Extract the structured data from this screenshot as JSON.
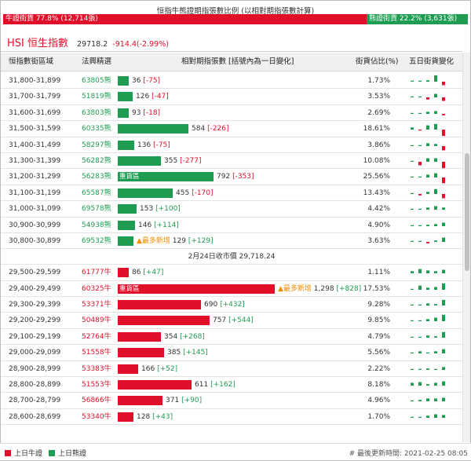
{
  "title": "恒指牛熊證期指張數比例 (以相對期指張數計算)",
  "ratio": {
    "bull_text": "牛證街貨 77.8% (12,714張)",
    "bear_text": "熊證街貨 22.2% (3,631張)",
    "bull_fraction": 0.778
  },
  "hsi": {
    "name": "HSI 恒生指數",
    "value": "29718.2",
    "change": "-914.4(-2.99%)"
  },
  "headers": {
    "range": "恒指數街區域",
    "code": "法興精選",
    "contracts": "相對期指張數 [括號內為一日變化]",
    "pct": "街貨佔比(%)",
    "spark": "五日街貨變化"
  },
  "colors": {
    "bull": "#e0102b",
    "bear": "#1e9d52",
    "flag": "#f08d00"
  },
  "bear_rows": [
    {
      "range": "31,800-31,899",
      "code": "63805熊",
      "count": "36",
      "change": "[-75]",
      "tag": "",
      "flag": "",
      "pct": "1.73%",
      "spark": [
        0,
        0,
        0.2,
        0.9,
        -0.5
      ]
    },
    {
      "range": "31,700-31,799",
      "code": "51819熊",
      "count": "126",
      "change": "[-47]",
      "tag": "",
      "flag": "",
      "pct": "3.53%",
      "spark": [
        0,
        0.1,
        -0.3,
        0.5,
        -0.5
      ]
    },
    {
      "range": "31,600-31,699",
      "code": "63803熊",
      "count": "93",
      "change": "[-18]",
      "tag": "",
      "flag": "",
      "pct": "2.69%",
      "spark": [
        0,
        0.1,
        0.3,
        0.4,
        -0.2
      ]
    },
    {
      "range": "31,500-31,599",
      "code": "60335熊",
      "count": "584",
      "change": "[-226]",
      "tag": "",
      "flag": "",
      "pct": "18.61%",
      "spark": [
        0.3,
        -0.1,
        0.6,
        0.8,
        -0.9
      ]
    },
    {
      "range": "31,400-31,499",
      "code": "58297熊",
      "count": "136",
      "change": "[-75]",
      "tag": "",
      "flag": "",
      "pct": "3.86%",
      "spark": [
        0,
        0.1,
        0.4,
        0.3,
        -0.6
      ]
    },
    {
      "range": "31,300-31,399",
      "code": "56282熊",
      "count": "355",
      "change": "[-277]",
      "tag": "",
      "flag": "",
      "pct": "10.08%",
      "spark": [
        0,
        -0.5,
        0.5,
        0.5,
        -0.9
      ]
    },
    {
      "range": "31,200-31,299",
      "code": "56283熊",
      "count": "792",
      "change": "[-353]",
      "tag": "重貨區",
      "flag": "",
      "pct": "25.56%",
      "spark": [
        0,
        0.1,
        0.4,
        0.6,
        -0.8
      ]
    },
    {
      "range": "31,100-31,199",
      "code": "65587熊",
      "count": "455",
      "change": "[-170]",
      "tag": "",
      "flag": "",
      "pct": "13.43%",
      "spark": [
        0,
        -0.2,
        0.3,
        0.7,
        -0.6
      ]
    },
    {
      "range": "31,000-31,099",
      "code": "69578熊",
      "count": "153",
      "change": "[+100]",
      "tag": "",
      "flag": "",
      "pct": "4.42%",
      "spark": [
        0,
        0.1,
        0.3,
        0.5,
        0.3
      ]
    },
    {
      "range": "30,900-30,999",
      "code": "54938熊",
      "count": "146",
      "change": "[+114]",
      "tag": "",
      "flag": "",
      "pct": "4.90%",
      "spark": [
        0,
        0.1,
        0.2,
        0.3,
        0.5
      ]
    },
    {
      "range": "30,800-30,899",
      "code": "69532熊",
      "count": "129",
      "change": "[+129]",
      "tag": "",
      "flag": "▲最多新增",
      "pct": "3.63%",
      "spark": [
        0,
        0,
        -0.2,
        0.2,
        0.6
      ]
    }
  ],
  "divider": "2月24日收市價 29,718.24",
  "bull_rows": [
    {
      "range": "29,500-29,599",
      "code": "61777牛",
      "count": "86",
      "change": "[+47]",
      "tag": "",
      "flag": "",
      "pct": "1.11%",
      "spark": [
        0.3,
        0.6,
        0.4,
        0.3,
        0.5
      ]
    },
    {
      "range": "29,400-29,499",
      "code": "60325牛",
      "count": "1,298",
      "change": "[+828]",
      "tag": "重貨區",
      "flag": "▲最多新增",
      "pct": "17.53%",
      "spark": [
        0,
        0.6,
        0.3,
        0.4,
        0.9
      ]
    },
    {
      "range": "29,300-29,399",
      "code": "53371牛",
      "count": "690",
      "change": "[+432]",
      "tag": "",
      "flag": "",
      "pct": "9.28%",
      "spark": [
        0,
        0.1,
        0.3,
        0.2,
        0.8
      ]
    },
    {
      "range": "29,200-29,299",
      "code": "50489牛",
      "count": "757",
      "change": "[+544]",
      "tag": "",
      "flag": "",
      "pct": "9.85%",
      "spark": [
        0.1,
        0.1,
        0.3,
        0.5,
        0.9
      ]
    },
    {
      "range": "29,100-29,199",
      "code": "52764牛",
      "count": "354",
      "change": "[+268]",
      "tag": "",
      "flag": "",
      "pct": "4.79%",
      "spark": [
        0.1,
        0.1,
        0.3,
        0.2,
        0.8
      ]
    },
    {
      "range": "29,000-29,099",
      "code": "51558牛",
      "count": "385",
      "change": "[+145]",
      "tag": "",
      "flag": "",
      "pct": "5.56%",
      "spark": [
        0,
        0.3,
        0.1,
        0.3,
        0.6
      ]
    },
    {
      "range": "28,900-28,999",
      "code": "53383牛",
      "count": "166",
      "change": "[+52]",
      "tag": "",
      "flag": "",
      "pct": "2.22%",
      "spark": [
        0.1,
        0.1,
        0.2,
        0.1,
        0.4
      ]
    },
    {
      "range": "28,800-28,899",
      "code": "51553牛",
      "count": "611",
      "change": "[+162]",
      "tag": "",
      "flag": "",
      "pct": "8.18%",
      "spark": [
        0.4,
        0.5,
        0.2,
        0.4,
        0.6
      ]
    },
    {
      "range": "28,700-28,799",
      "code": "56866牛",
      "count": "371",
      "change": "[+90]",
      "tag": "",
      "flag": "",
      "pct": "4.96%",
      "spark": [
        0,
        0.2,
        0.4,
        0.4,
        0.5
      ]
    },
    {
      "range": "28,600-28,699",
      "code": "53340牛",
      "count": "128",
      "change": "[+43]",
      "tag": "",
      "flag": "",
      "pct": "1.70%",
      "spark": [
        0,
        0,
        0.3,
        0.5,
        0.4
      ]
    }
  ],
  "footer": {
    "legend_bull": "上日牛證",
    "legend_bear": "上日熊證",
    "updated": "# 最後更新時間: 2021-02-25 08:05"
  }
}
